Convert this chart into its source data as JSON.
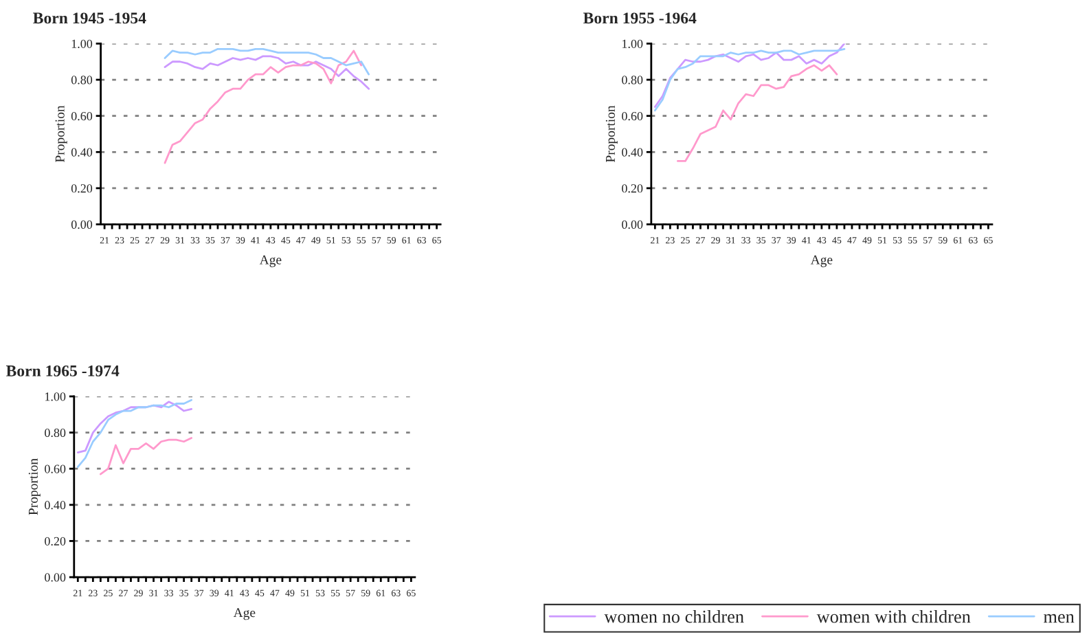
{
  "chart_data": [
    {
      "type": "line",
      "title": "Born 1945 -1954",
      "xlabel": "Age",
      "ylabel": "Proportion",
      "categories": [
        "21",
        null,
        "23",
        null,
        "25",
        null,
        "27",
        null,
        "29",
        null,
        "31",
        null,
        "33",
        null,
        "35",
        null,
        "37",
        null,
        "39",
        null,
        "41",
        null,
        "43",
        null,
        "45",
        null,
        "47",
        null,
        "49",
        null,
        "51",
        null,
        "53",
        null,
        "55",
        null,
        "57",
        null,
        "59",
        null,
        "61",
        null,
        "63",
        null,
        "65"
      ],
      "ylim": [
        0,
        1
      ],
      "yticks": [
        {
          "value": 0,
          "label": "0.00"
        },
        {
          "value": 0.2,
          "label": "0.20"
        },
        {
          "value": 0.4,
          "label": "0.40"
        },
        {
          "value": 0.6,
          "label": "0.60"
        },
        {
          "value": 0.8,
          "label": "0.80"
        },
        {
          "value": 1,
          "label": "1.00"
        }
      ],
      "grid": "y",
      "line_style": "solid",
      "legend": "bottom right",
      "series": [
        {
          "name": "women no children",
          "color": "#cc99ff",
          "values": [
            null,
            null,
            null,
            null,
            null,
            null,
            null,
            null,
            0.87,
            0.9,
            0.9,
            0.89,
            0.87,
            0.86,
            0.89,
            0.88,
            0.9,
            0.92,
            0.91,
            0.92,
            0.91,
            0.93,
            0.93,
            0.92,
            0.89,
            0.9,
            0.88,
            0.88,
            0.9,
            0.88,
            0.86,
            0.82,
            0.86,
            0.82,
            0.79,
            0.75,
            null,
            null,
            null,
            null,
            null,
            null,
            null,
            null,
            null
          ]
        },
        {
          "name": "women with children",
          "color": "#ff99cc",
          "values": [
            null,
            null,
            null,
            null,
            null,
            null,
            null,
            null,
            0.34,
            0.44,
            0.46,
            0.51,
            0.56,
            0.58,
            0.64,
            0.68,
            0.73,
            0.75,
            0.75,
            0.8,
            0.83,
            0.83,
            0.87,
            0.84,
            0.87,
            0.88,
            0.88,
            0.9,
            0.89,
            0.86,
            0.78,
            0.88,
            0.9,
            0.96,
            0.88,
            null,
            null,
            null,
            null,
            null,
            null,
            null,
            null,
            null,
            null
          ]
        },
        {
          "name": "men",
          "color": "#99ccff",
          "values": [
            null,
            null,
            null,
            null,
            null,
            null,
            null,
            null,
            0.92,
            0.96,
            0.95,
            0.95,
            0.94,
            0.95,
            0.95,
            0.97,
            0.97,
            0.97,
            0.96,
            0.96,
            0.97,
            0.97,
            0.96,
            0.95,
            0.95,
            0.95,
            0.95,
            0.95,
            0.94,
            0.92,
            0.92,
            0.9,
            0.88,
            0.89,
            0.9,
            0.83,
            null,
            null,
            null,
            null,
            null,
            null,
            null,
            null,
            null
          ]
        }
      ]
    },
    {
      "type": "line",
      "title": "Born 1955 -1964",
      "xlabel": "Age",
      "ylabel": "Proportion",
      "categories": [
        "21",
        null,
        "23",
        null,
        "25",
        null,
        "27",
        null,
        "29",
        null,
        "31",
        null,
        "33",
        null,
        "35",
        null,
        "37",
        null,
        "39",
        null,
        "41",
        null,
        "43",
        null,
        "45",
        null,
        "47",
        null,
        "49",
        null,
        "51",
        null,
        "53",
        null,
        "55",
        null,
        "57",
        null,
        "59",
        null,
        "61",
        null,
        "63",
        null,
        "65"
      ],
      "ylim": [
        0,
        1
      ],
      "yticks": [
        {
          "value": 0,
          "label": "0.00"
        },
        {
          "value": 0.2,
          "label": "0.20"
        },
        {
          "value": 0.4,
          "label": "0.40"
        },
        {
          "value": 0.6,
          "label": "0.60"
        },
        {
          "value": 0.8,
          "label": "0.80"
        },
        {
          "value": 1,
          "label": "1.00"
        }
      ],
      "grid": "y",
      "line_style": "solid",
      "series": [
        {
          "color": "#cc99ff",
          "values": [
            0.65,
            0.71,
            0.81,
            0.86,
            0.91,
            0.9,
            0.9,
            0.91,
            0.93,
            0.94,
            0.92,
            0.9,
            0.93,
            0.94,
            0.91,
            0.92,
            0.95,
            0.91,
            0.91,
            0.93,
            0.89,
            0.91,
            0.89,
            0.93,
            0.95,
            1.0,
            null,
            null,
            null,
            null,
            null,
            null,
            null,
            null,
            null,
            null,
            null,
            null,
            null,
            null,
            null,
            null,
            null,
            null,
            null
          ]
        },
        {
          "color": "#ff99cc",
          "values": [
            null,
            null,
            null,
            0.35,
            0.35,
            0.42,
            0.5,
            0.52,
            0.54,
            0.63,
            0.58,
            0.67,
            0.72,
            0.71,
            0.77,
            0.77,
            0.75,
            0.76,
            0.82,
            0.83,
            0.86,
            0.88,
            0.85,
            0.88,
            0.83,
            null,
            null,
            null,
            null,
            null,
            null,
            null,
            null,
            null,
            null,
            null,
            null,
            null,
            null,
            null,
            null,
            null,
            null,
            null,
            null
          ]
        },
        {
          "color": "#99ccff",
          "values": [
            0.63,
            0.69,
            0.8,
            0.86,
            0.87,
            0.89,
            0.93,
            0.93,
            0.93,
            0.93,
            0.95,
            0.94,
            0.95,
            0.95,
            0.96,
            0.95,
            0.95,
            0.96,
            0.96,
            0.94,
            0.95,
            0.96,
            0.96,
            0.96,
            0.96,
            0.97,
            null,
            null,
            null,
            null,
            null,
            null,
            null,
            null,
            null,
            null,
            null,
            null,
            null,
            null,
            null,
            null,
            null,
            null,
            null
          ]
        }
      ]
    },
    {
      "type": "line",
      "title": "Born 1965 -1974",
      "xlabel": "Age",
      "ylabel": "Proportion",
      "categories": [
        "21",
        null,
        "23",
        null,
        "25",
        null,
        "27",
        null,
        "29",
        null,
        "31",
        null,
        "33",
        null,
        "35",
        null,
        "37",
        null,
        "39",
        null,
        "41",
        null,
        "43",
        null,
        "45",
        null,
        "47",
        null,
        "49",
        null,
        "51",
        null,
        "53",
        null,
        "55",
        null,
        "57",
        null,
        "59",
        null,
        "61",
        null,
        "63",
        null,
        "65"
      ],
      "ylim": [
        0,
        1
      ],
      "yticks": [
        {
          "value": 0,
          "label": "0.00"
        },
        {
          "value": 0.2,
          "label": "0.20"
        },
        {
          "value": 0.4,
          "label": "0.40"
        },
        {
          "value": 0.6,
          "label": "0.60"
        },
        {
          "value": 0.8,
          "label": "0.80"
        },
        {
          "value": 1,
          "label": "1.00"
        }
      ],
      "grid": "y",
      "line_style": "solid",
      "series": [
        {
          "color": "#cc99ff",
          "values": [
            0.69,
            0.7,
            0.8,
            0.85,
            0.89,
            0.91,
            0.92,
            0.94,
            0.94,
            0.94,
            0.95,
            0.94,
            0.97,
            0.95,
            0.92,
            0.93,
            null,
            null,
            null,
            null,
            null,
            null,
            null,
            null,
            null,
            null,
            null,
            null,
            null,
            null,
            null,
            null,
            null,
            null,
            null,
            null,
            null,
            null,
            null,
            null,
            null,
            null,
            null,
            null,
            null
          ]
        },
        {
          "color": "#ff99cc",
          "values": [
            null,
            null,
            null,
            0.57,
            0.6,
            0.73,
            0.63,
            0.71,
            0.71,
            0.74,
            0.71,
            0.75,
            0.76,
            0.76,
            0.75,
            0.77,
            null,
            null,
            null,
            null,
            null,
            null,
            null,
            null,
            null,
            null,
            null,
            null,
            null,
            null,
            null,
            null,
            null,
            null,
            null,
            null,
            null,
            null,
            null,
            null,
            null,
            null,
            null,
            null,
            null
          ]
        },
        {
          "color": "#99ccff",
          "values": [
            0.61,
            0.66,
            0.75,
            0.8,
            0.87,
            0.9,
            0.92,
            0.92,
            0.94,
            0.94,
            0.95,
            0.95,
            0.94,
            0.96,
            0.96,
            0.98,
            null,
            null,
            null,
            null,
            null,
            null,
            null,
            null,
            null,
            null,
            null,
            null,
            null,
            null,
            null,
            null,
            null,
            null,
            null,
            null,
            null,
            null,
            null,
            null,
            null,
            null,
            null,
            null,
            null
          ]
        }
      ]
    }
  ]
}
